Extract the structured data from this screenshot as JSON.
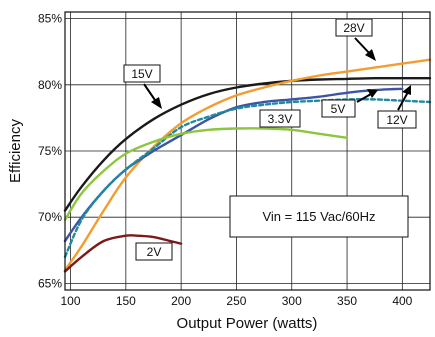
{
  "chart_data": {
    "type": "line",
    "xlabel": "Output Power (watts)",
    "ylabel": "Efficiency",
    "xlim": [
      95,
      425
    ],
    "ylim": [
      64.5,
      85.5
    ],
    "x_ticks": [
      100,
      150,
      200,
      250,
      300,
      350,
      400
    ],
    "x_tick_labels": [
      "100",
      "150",
      "200",
      "250",
      "300",
      "350",
      "400"
    ],
    "y_ticks": [
      65,
      70,
      75,
      80,
      85
    ],
    "y_tick_labels": [
      "65%",
      "70%",
      "75%",
      "80%",
      "85%"
    ],
    "grid": true,
    "annotation": "Vin = 115 Vac/60Hz",
    "series": [
      {
        "name": "15V",
        "color": "#1a1a1a",
        "dash": "",
        "x": [
          95,
          110,
          130,
          150,
          175,
          200,
          225,
          250,
          275,
          300,
          325,
          350,
          375,
          400,
          425
        ],
        "y": [
          70.5,
          72.3,
          74.3,
          75.9,
          77.4,
          78.5,
          79.3,
          79.8,
          80.1,
          80.3,
          80.4,
          80.45,
          80.5,
          80.5,
          80.5
        ]
      },
      {
        "name": "28V",
        "color": "#f39c2f",
        "dash": "",
        "x": [
          95,
          110,
          130,
          150,
          175,
          200,
          225,
          250,
          275,
          300,
          325,
          350,
          375,
          400,
          425
        ],
        "y": [
          66.0,
          67.8,
          70.5,
          73.0,
          75.3,
          77.1,
          78.3,
          79.2,
          79.8,
          80.3,
          80.7,
          81.0,
          81.3,
          81.6,
          81.9
        ]
      },
      {
        "name": "12V",
        "color": "#3d54a4",
        "dash": "",
        "x": [
          95,
          110,
          130,
          150,
          175,
          200,
          225,
          250,
          275,
          300,
          325,
          350,
          375,
          400
        ],
        "y": [
          68.2,
          70.0,
          72.0,
          73.6,
          75.0,
          76.2,
          77.4,
          78.3,
          78.7,
          78.9,
          79.1,
          79.4,
          79.6,
          79.7
        ]
      },
      {
        "name": "5V",
        "color": "#1f8aa0",
        "dash": "4,3",
        "x": [
          95,
          110,
          130,
          150,
          175,
          200,
          225,
          250,
          275,
          300,
          325,
          350,
          375,
          400,
          425
        ],
        "y": [
          67.0,
          69.8,
          72.0,
          73.6,
          75.2,
          76.8,
          77.6,
          78.2,
          78.5,
          78.7,
          78.8,
          78.9,
          78.9,
          78.8,
          78.7
        ]
      },
      {
        "name": "3.3V",
        "color": "#8cc63e",
        "dash": "",
        "x": [
          95,
          110,
          130,
          150,
          175,
          200,
          225,
          250,
          275,
          300,
          325,
          350
        ],
        "y": [
          69.8,
          71.8,
          73.5,
          74.8,
          75.7,
          76.3,
          76.6,
          76.7,
          76.7,
          76.6,
          76.3,
          76.0
        ]
      },
      {
        "name": "2V",
        "color": "#7b1a1a",
        "dash": "",
        "x": [
          95,
          110,
          130,
          150,
          160,
          175,
          190,
          200
        ],
        "y": [
          65.9,
          67.0,
          68.2,
          68.6,
          68.6,
          68.5,
          68.2,
          68.0
        ]
      }
    ]
  }
}
